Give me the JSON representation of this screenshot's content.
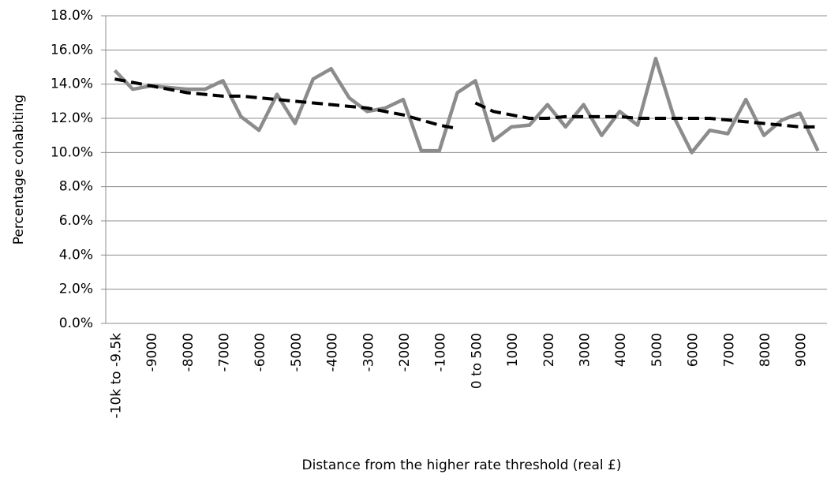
{
  "chart_data": {
    "type": "line",
    "y_label": "Percentage cohabiting",
    "x_label": "Distance from the higher rate threshold (real £)",
    "categories": [
      "-10k to -9.5k",
      null,
      "-9000",
      null,
      "-8000",
      null,
      "-7000",
      null,
      "-6000",
      null,
      "-5000",
      null,
      "-4000",
      null,
      "-3000",
      null,
      "-2000",
      null,
      "-1000",
      null,
      "0 to 500",
      null,
      "1000",
      null,
      "2000",
      null,
      "3000",
      null,
      "4000",
      null,
      "5000",
      null,
      "6000",
      null,
      "7000",
      null,
      "8000",
      null,
      "9000",
      null
    ],
    "series": [
      {
        "color": "#8c8c8c",
        "style": "solid",
        "values": [
          14.8,
          13.7,
          13.9,
          13.8,
          13.7,
          13.7,
          14.2,
          12.1,
          11.3,
          13.4,
          11.7,
          14.3,
          14.9,
          13.2,
          12.4,
          12.6,
          13.1,
          10.1,
          10.1,
          13.5,
          14.2,
          10.7,
          11.5,
          11.6,
          12.8,
          11.5,
          12.8,
          11.0,
          12.4,
          11.6,
          15.5,
          12.1,
          10.0,
          11.3,
          11.1,
          13.1,
          11.0,
          11.9,
          12.3,
          10.1
        ]
      },
      {
        "color": "#000000",
        "style": "dashed",
        "values": [
          14.3,
          14.1,
          13.9,
          13.7,
          13.5,
          13.4,
          13.3,
          13.3,
          13.2,
          13.1,
          13.0,
          12.9,
          12.8,
          12.7,
          12.6,
          12.4,
          12.2,
          11.9,
          11.6,
          11.4,
          null,
          null,
          null,
          null,
          null,
          null,
          null,
          null,
          null,
          null,
          null,
          null,
          null,
          null,
          null,
          null,
          null,
          null,
          null,
          null
        ]
      },
      {
        "color": "#000000",
        "style": "dashed",
        "values": [
          null,
          null,
          null,
          null,
          null,
          null,
          null,
          null,
          null,
          null,
          null,
          null,
          null,
          null,
          null,
          null,
          null,
          null,
          null,
          null,
          12.9,
          12.4,
          12.2,
          12.0,
          12.0,
          12.1,
          12.1,
          12.1,
          12.1,
          12.0,
          12.0,
          12.0,
          12.0,
          12.0,
          11.9,
          11.8,
          11.7,
          11.6,
          11.5,
          11.5
        ]
      }
    ],
    "ylim": [
      0,
      18
    ],
    "yticks": [
      {
        "value": 0,
        "label": "0.0%"
      },
      {
        "value": 2,
        "label": "2.0%"
      },
      {
        "value": 4,
        "label": "4.0%"
      },
      {
        "value": 6,
        "label": "6.0%"
      },
      {
        "value": 8,
        "label": "8.0%"
      },
      {
        "value": 10,
        "label": "10.0%"
      },
      {
        "value": 12,
        "label": "12.0%"
      },
      {
        "value": 14,
        "label": "14.0%"
      },
      {
        "value": 16,
        "label": "16.0%"
      },
      {
        "value": 18,
        "label": "18.0%"
      }
    ],
    "grid": true
  }
}
